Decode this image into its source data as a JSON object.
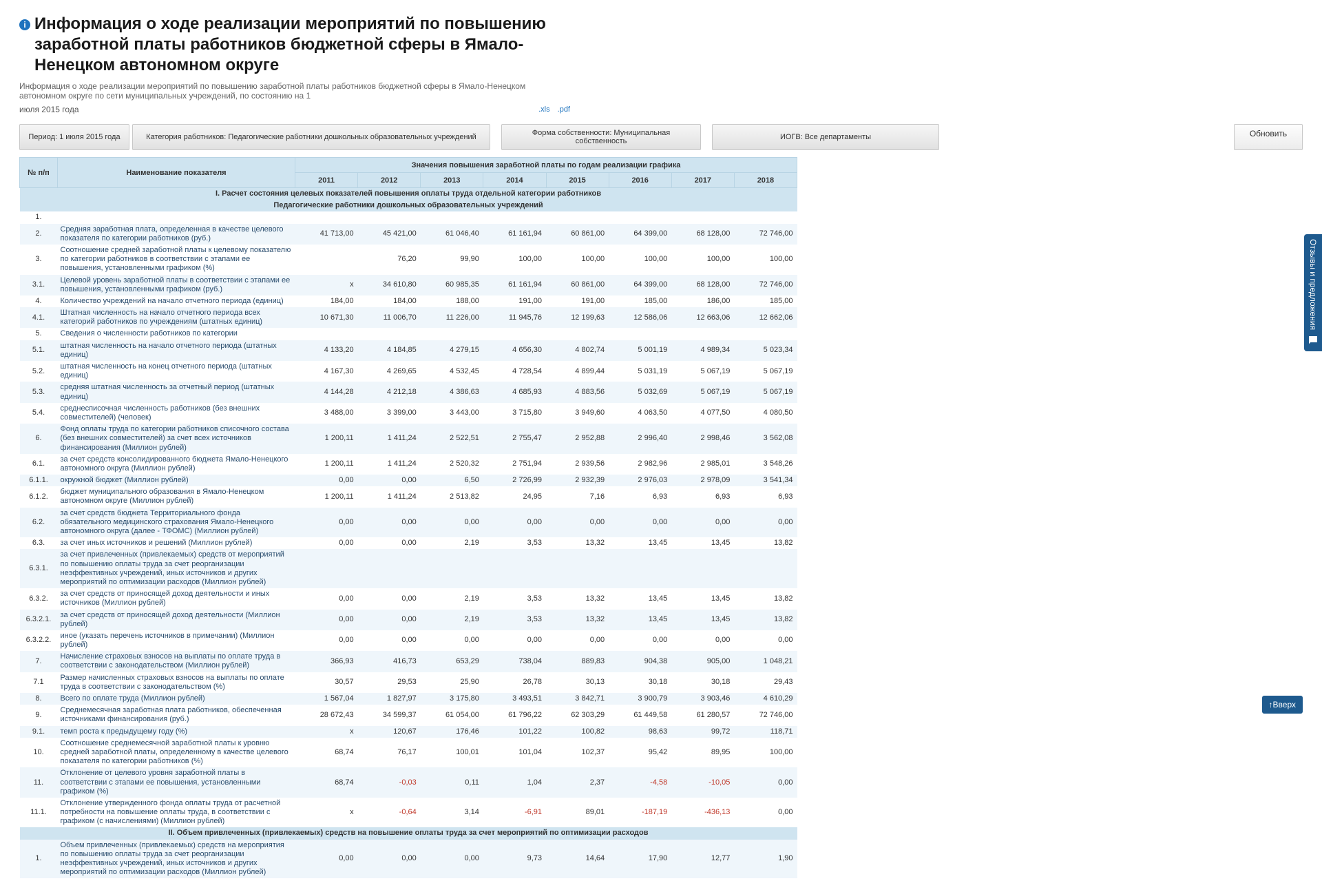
{
  "colors": {
    "header_bg": "#cfe4f0",
    "row_even": "#eff6fb",
    "row_odd": "#ffffff",
    "negative": "#c0392b",
    "link": "#1e73be",
    "panel": "#1e5a8e"
  },
  "title": "Информация о ходе реализации мероприятий по повышению заработной платы работников бюджетной сферы в Ямало-Ненецком автономном округе",
  "subtitle": "Информация о ходе реализации мероприятий по повышению заработной платы работников бюджетной сферы в Ямало-Ненецком автономном округе по сети муниципальных учреждений, по состоянию на 1",
  "dateText": "июля 2015 года",
  "export": {
    "xls": ".xls",
    "pdf": ".pdf"
  },
  "filters": {
    "period": "Период: 1 июля 2015 года",
    "category": "Категория работников: Педагогические работники дошкольных образовательных учреждений",
    "ownership": "Форма собственности: Муниципальная собственность",
    "iogv": "ИОГВ: Все департаменты",
    "update": "Обновить"
  },
  "feedbackLabel": "Отзывы и предложения",
  "scrollTop": "↑Вверх",
  "table": {
    "col_num": "№ п/п",
    "col_name": "Наименование показателя",
    "col_group": "Значения повышения заработной платы по годам реализации графика",
    "years": [
      "2011",
      "2012",
      "2013",
      "2014",
      "2015",
      "2016",
      "2017",
      "2018"
    ],
    "section1": "I. Расчет состояния целевых показателей повышения оплаты труда отдельной категории работников",
    "section1sub": "Педагогические работники дошкольных образовательных учреждений",
    "section2": "II. Объем привлеченных (привлекаемых) средств на повышение оплаты труда за счет мероприятий по оптимизации расходов",
    "rows": [
      {
        "n": "1.",
        "name": "",
        "v": [
          "",
          "",
          "",
          "",
          "",
          "",
          "",
          ""
        ]
      },
      {
        "n": "2.",
        "name": "Средняя заработная плата, определенная в качестве целевого показателя по категории работников (руб.)",
        "v": [
          "41 713,00",
          "45 421,00",
          "61 046,40",
          "61 161,94",
          "60 861,00",
          "64 399,00",
          "68 128,00",
          "72 746,00"
        ]
      },
      {
        "n": "3.",
        "name": "Соотношение средней заработной платы к целевому показателю по категории работников в соответствии с этапами ее повышения, установленными графиком (%)",
        "v": [
          "",
          "76,20",
          "99,90",
          "100,00",
          "100,00",
          "100,00",
          "100,00",
          "100,00"
        ]
      },
      {
        "n": "3.1.",
        "name": "Целевой уровень заработной платы в соответствии с этапами ее повышения, установленными графиком (руб.)",
        "v": [
          "х",
          "34 610,80",
          "60 985,35",
          "61 161,94",
          "60 861,00",
          "64 399,00",
          "68 128,00",
          "72 746,00"
        ]
      },
      {
        "n": "4.",
        "name": "Количество учреждений на начало отчетного периода (единиц)",
        "v": [
          "184,00",
          "184,00",
          "188,00",
          "191,00",
          "191,00",
          "185,00",
          "186,00",
          "185,00"
        ]
      },
      {
        "n": "4.1.",
        "name": "Штатная численность на начало отчетного периода всех категорий работников по учреждениям (штатных единиц)",
        "v": [
          "10 671,30",
          "11 006,70",
          "11 226,00",
          "11 945,76",
          "12 199,63",
          "12 586,06",
          "12 663,06",
          "12 662,06"
        ]
      },
      {
        "n": "5.",
        "name": "Сведения о численности работников по категории",
        "v": [
          "",
          "",
          "",
          "",
          "",
          "",
          "",
          ""
        ]
      },
      {
        "n": "5.1.",
        "name": "штатная численность на начало отчетного периода (штатных единиц)",
        "v": [
          "4 133,20",
          "4 184,85",
          "4 279,15",
          "4 656,30",
          "4 802,74",
          "5 001,19",
          "4 989,34",
          "5 023,34"
        ]
      },
      {
        "n": "5.2.",
        "name": "штатная численность на конец отчетного периода (штатных единиц)",
        "v": [
          "4 167,30",
          "4 269,65",
          "4 532,45",
          "4 728,54",
          "4 899,44",
          "5 031,19",
          "5 067,19",
          "5 067,19"
        ]
      },
      {
        "n": "5.3.",
        "name": "средняя штатная численность за отчетный период (штатных единиц)",
        "v": [
          "4 144,28",
          "4 212,18",
          "4 386,63",
          "4 685,93",
          "4 883,56",
          "5 032,69",
          "5 067,19",
          "5 067,19"
        ]
      },
      {
        "n": "5.4.",
        "name": "среднесписочная численность работников (без внешних совместителей) (человек)",
        "v": [
          "3 488,00",
          "3 399,00",
          "3 443,00",
          "3 715,80",
          "3 949,60",
          "4 063,50",
          "4 077,50",
          "4 080,50"
        ]
      },
      {
        "n": "6.",
        "name": "Фонд оплаты труда по категории работников списочного состава (без внешних совместителей) за счет всех источников финансирования (Миллион рублей)",
        "v": [
          "1 200,11",
          "1 411,24",
          "2 522,51",
          "2 755,47",
          "2 952,88",
          "2 996,40",
          "2 998,46",
          "3 562,08"
        ]
      },
      {
        "n": "6.1.",
        "name": "за счет средств консолидированного бюджета Ямало-Ненецкого автономного округа (Миллион рублей)",
        "v": [
          "1 200,11",
          "1 411,24",
          "2 520,32",
          "2 751,94",
          "2 939,56",
          "2 982,96",
          "2 985,01",
          "3 548,26"
        ]
      },
      {
        "n": "6.1.1.",
        "name": "окружной бюджет (Миллион рублей)",
        "v": [
          "0,00",
          "0,00",
          "6,50",
          "2 726,99",
          "2 932,39",
          "2 976,03",
          "2 978,09",
          "3 541,34"
        ]
      },
      {
        "n": "6.1.2.",
        "name": "бюджет муниципального образования в Ямало-Ненецком автономном округе (Миллион рублей)",
        "v": [
          "1 200,11",
          "1 411,24",
          "2 513,82",
          "24,95",
          "7,16",
          "6,93",
          "6,93",
          "6,93"
        ]
      },
      {
        "n": "6.2.",
        "name": "за счет средств бюджета Территориального фонда обязательного медицинского страхования Ямало-Ненецкого автономного округа (далее - ТФОМС) (Миллион рублей)",
        "v": [
          "0,00",
          "0,00",
          "0,00",
          "0,00",
          "0,00",
          "0,00",
          "0,00",
          "0,00"
        ]
      },
      {
        "n": "6.3.",
        "name": "за счет иных источников и решений (Миллион рублей)",
        "v": [
          "0,00",
          "0,00",
          "2,19",
          "3,53",
          "13,32",
          "13,45",
          "13,45",
          "13,82"
        ]
      },
      {
        "n": "6.3.1.",
        "name": "за счет привлеченных (привлекаемых) средств от мероприятий по повышению оплаты труда за счет реорганизации неэффективных учреждений, иных источников и других мероприятий по оптимизации расходов (Миллион рублей)",
        "v": [
          "",
          "",
          "",
          "",
          "",
          "",
          "",
          ""
        ]
      },
      {
        "n": "6.3.2.",
        "name": "за счет средств от приносящей доход деятельности и иных источников (Миллион рублей)",
        "v": [
          "0,00",
          "0,00",
          "2,19",
          "3,53",
          "13,32",
          "13,45",
          "13,45",
          "13,82"
        ]
      },
      {
        "n": "6.3.2.1.",
        "name": "за счет средств от приносящей доход деятельности (Миллион рублей)",
        "v": [
          "0,00",
          "0,00",
          "2,19",
          "3,53",
          "13,32",
          "13,45",
          "13,45",
          "13,82"
        ]
      },
      {
        "n": "6.3.2.2.",
        "name": "иное (указать перечень источников в примечании) (Миллион рублей)",
        "v": [
          "0,00",
          "0,00",
          "0,00",
          "0,00",
          "0,00",
          "0,00",
          "0,00",
          "0,00"
        ]
      },
      {
        "n": "7.",
        "name": "Начисление страховых взносов на выплаты по оплате труда в соответствии с законодательством (Миллион рублей)",
        "v": [
          "366,93",
          "416,73",
          "653,29",
          "738,04",
          "889,83",
          "904,38",
          "905,00",
          "1 048,21"
        ]
      },
      {
        "n": "7.1",
        "name": "Размер начисленных страховых взносов на выплаты по оплате труда в соответствии с законодательством (%)",
        "v": [
          "30,57",
          "29,53",
          "25,90",
          "26,78",
          "30,13",
          "30,18",
          "30,18",
          "29,43"
        ]
      },
      {
        "n": "8.",
        "name": "Всего по оплате труда (Миллион рублей)",
        "v": [
          "1 567,04",
          "1 827,97",
          "3 175,80",
          "3 493,51",
          "3 842,71",
          "3 900,79",
          "3 903,46",
          "4 610,29"
        ]
      },
      {
        "n": "9.",
        "name": "Среднемесячная заработная плата работников, обеспеченная источниками финансирования (руб.)",
        "v": [
          "28 672,43",
          "34 599,37",
          "61 054,00",
          "61 796,22",
          "62 303,29",
          "61 449,58",
          "61 280,57",
          "72 746,00"
        ]
      },
      {
        "n": "9.1.",
        "name": "темп роста к предыдущему году (%)",
        "v": [
          "х",
          "120,67",
          "176,46",
          "101,22",
          "100,82",
          "98,63",
          "99,72",
          "118,71"
        ]
      },
      {
        "n": "10.",
        "name": "Соотношение среднемесячной заработной платы к уровню средней заработной платы, определенному в качестве целевого показателя по категории работников (%)",
        "v": [
          "68,74",
          "76,17",
          "100,01",
          "101,04",
          "102,37",
          "95,42",
          "89,95",
          "100,00"
        ]
      },
      {
        "n": "11.",
        "name": "Отклонение от целевого уровня заработной платы в соответствии с этапами ее повышения, установленными графиком (%)",
        "v": [
          "68,74",
          "-0,03",
          "0,11",
          "1,04",
          "2,37",
          "-4,58",
          "-10,05",
          "0,00"
        ]
      },
      {
        "n": "11.1.",
        "name": "Отклонение утвержденного фонда оплаты труда от расчетной потребности на повышение оплаты труда, в соответствии с графиком (с начислениями) (Миллион рублей)",
        "v": [
          "х",
          "-0,64",
          "3,14",
          "-6,91",
          "89,01",
          "-187,19",
          "-436,13",
          "0,00"
        ]
      }
    ],
    "rows2": [
      {
        "n": "1.",
        "name": "Объем привлеченных (привлекаемых) средств на мероприятия по повышению оплаты труда за счет реорганизации неэффективных учреждений, иных источников и других мероприятий по оптимизации расходов (Миллион рублей)",
        "v": [
          "0,00",
          "0,00",
          "0,00",
          "9,73",
          "14,64",
          "17,90",
          "12,77",
          "1,90"
        ]
      }
    ]
  }
}
